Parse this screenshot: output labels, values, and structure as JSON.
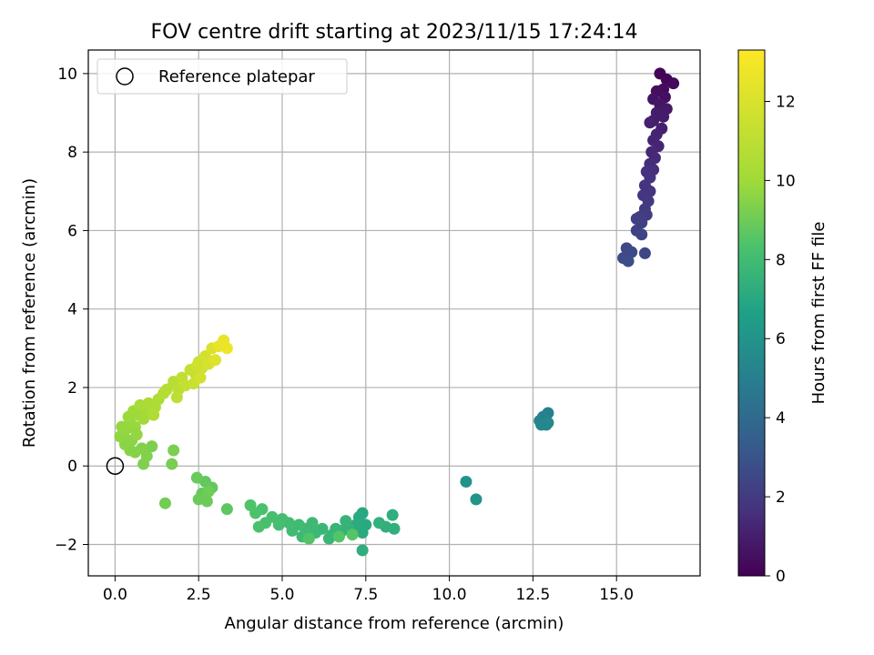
{
  "chart_data": {
    "type": "scatter",
    "title": "FOV centre drift starting at 2023/11/15 17:24:14",
    "xlabel": "Angular distance from reference (arcmin)",
    "ylabel": "Rotation from reference (arcmin)",
    "xlim": [
      -0.8,
      17.5
    ],
    "ylim": [
      -2.8,
      10.6
    ],
    "xticks": [
      0.0,
      2.5,
      5.0,
      7.5,
      10.0,
      12.5,
      15.0
    ],
    "xtick_labels": [
      "0.0",
      "2.5",
      "5.0",
      "7.5",
      "10.0",
      "12.5",
      "15.0"
    ],
    "yticks": [
      -2,
      0,
      2,
      4,
      6,
      8,
      10
    ],
    "ytick_labels": [
      "−2",
      "0",
      "2",
      "4",
      "6",
      "8",
      "10"
    ],
    "grid": true,
    "legend": {
      "position": "top-left",
      "entries": [
        "Reference platepar"
      ]
    },
    "reference_point": {
      "x": 0.0,
      "y": 0.0,
      "marker": "open-circle"
    },
    "colorbar": {
      "label": "Hours from first FF file",
      "range": [
        0,
        13.3
      ],
      "ticks": [
        0,
        2,
        4,
        6,
        8,
        10,
        12
      ],
      "tick_labels": [
        "0",
        "2",
        "4",
        "6",
        "8",
        "10",
        "12"
      ],
      "colormap": "viridis"
    },
    "points": [
      {
        "x": 16.3,
        "y": 10.0,
        "c": 0.1
      },
      {
        "x": 16.5,
        "y": 9.85,
        "c": 0.2
      },
      {
        "x": 16.7,
        "y": 9.75,
        "c": 0.3
      },
      {
        "x": 16.4,
        "y": 9.6,
        "c": 0.4
      },
      {
        "x": 16.2,
        "y": 9.55,
        "c": 0.5
      },
      {
        "x": 16.45,
        "y": 9.4,
        "c": 0.6
      },
      {
        "x": 16.1,
        "y": 9.35,
        "c": 0.7
      },
      {
        "x": 16.3,
        "y": 9.2,
        "c": 0.8
      },
      {
        "x": 16.5,
        "y": 9.1,
        "c": 0.9
      },
      {
        "x": 16.2,
        "y": 9.0,
        "c": 1.0
      },
      {
        "x": 16.4,
        "y": 8.9,
        "c": 1.05
      },
      {
        "x": 16.1,
        "y": 8.8,
        "c": 1.1
      },
      {
        "x": 16.35,
        "y": 8.6,
        "c": 1.2
      },
      {
        "x": 16.0,
        "y": 8.75,
        "c": 1.25
      },
      {
        "x": 16.2,
        "y": 8.45,
        "c": 1.3
      },
      {
        "x": 16.1,
        "y": 8.3,
        "c": 1.4
      },
      {
        "x": 16.25,
        "y": 8.15,
        "c": 1.45
      },
      {
        "x": 16.05,
        "y": 8.0,
        "c": 1.5
      },
      {
        "x": 16.15,
        "y": 7.85,
        "c": 1.6
      },
      {
        "x": 16.0,
        "y": 7.7,
        "c": 1.7
      },
      {
        "x": 16.1,
        "y": 7.55,
        "c": 1.8
      },
      {
        "x": 15.9,
        "y": 7.5,
        "c": 1.85
      },
      {
        "x": 16.0,
        "y": 7.35,
        "c": 1.9
      },
      {
        "x": 15.85,
        "y": 7.15,
        "c": 2.0
      },
      {
        "x": 16.0,
        "y": 7.0,
        "c": 2.05
      },
      {
        "x": 15.8,
        "y": 6.9,
        "c": 2.1
      },
      {
        "x": 15.95,
        "y": 6.75,
        "c": 2.2
      },
      {
        "x": 15.85,
        "y": 6.55,
        "c": 2.3
      },
      {
        "x": 15.9,
        "y": 6.4,
        "c": 2.4
      },
      {
        "x": 15.7,
        "y": 6.35,
        "c": 2.45
      },
      {
        "x": 15.6,
        "y": 6.3,
        "c": 2.5
      },
      {
        "x": 15.75,
        "y": 6.2,
        "c": 2.55
      },
      {
        "x": 15.6,
        "y": 6.0,
        "c": 2.6
      },
      {
        "x": 15.75,
        "y": 5.9,
        "c": 2.7
      },
      {
        "x": 15.85,
        "y": 5.42,
        "c": 2.8
      },
      {
        "x": 15.3,
        "y": 5.55,
        "c": 2.9
      },
      {
        "x": 15.45,
        "y": 5.45,
        "c": 3.0
      },
      {
        "x": 15.2,
        "y": 5.3,
        "c": 3.05
      },
      {
        "x": 15.35,
        "y": 5.22,
        "c": 3.1
      },
      {
        "x": 12.95,
        "y": 1.35,
        "c": 5.7
      },
      {
        "x": 12.8,
        "y": 1.25,
        "c": 5.8
      },
      {
        "x": 12.7,
        "y": 1.15,
        "c": 5.9
      },
      {
        "x": 12.9,
        "y": 1.05,
        "c": 6.0
      },
      {
        "x": 12.75,
        "y": 1.05,
        "c": 6.1
      },
      {
        "x": 12.95,
        "y": 1.1,
        "c": 6.2
      },
      {
        "x": 10.5,
        "y": -0.4,
        "c": 6.8
      },
      {
        "x": 10.8,
        "y": -0.85,
        "c": 6.9
      },
      {
        "x": 7.4,
        "y": -1.2,
        "c": 8.0
      },
      {
        "x": 7.3,
        "y": -1.3,
        "c": 8.05
      },
      {
        "x": 7.5,
        "y": -1.5,
        "c": 8.1
      },
      {
        "x": 7.4,
        "y": -1.7,
        "c": 8.15
      },
      {
        "x": 7.2,
        "y": -1.5,
        "c": 8.2
      },
      {
        "x": 7.4,
        "y": -2.15,
        "c": 8.3
      },
      {
        "x": 8.3,
        "y": -1.25,
        "c": 8.35
      },
      {
        "x": 8.35,
        "y": -1.6,
        "c": 8.4
      },
      {
        "x": 8.1,
        "y": -1.55,
        "c": 8.45
      },
      {
        "x": 7.9,
        "y": -1.45,
        "c": 8.5
      },
      {
        "x": 7.0,
        "y": -1.6,
        "c": 8.55
      },
      {
        "x": 6.8,
        "y": -1.65,
        "c": 8.6
      },
      {
        "x": 6.9,
        "y": -1.4,
        "c": 8.65
      },
      {
        "x": 6.6,
        "y": -1.6,
        "c": 8.7
      },
      {
        "x": 6.5,
        "y": -1.75,
        "c": 8.75
      },
      {
        "x": 6.4,
        "y": -1.85,
        "c": 8.8
      },
      {
        "x": 6.2,
        "y": -1.6,
        "c": 8.85
      },
      {
        "x": 6.0,
        "y": -1.7,
        "c": 8.9
      },
      {
        "x": 5.9,
        "y": -1.45,
        "c": 8.95
      },
      {
        "x": 5.7,
        "y": -1.6,
        "c": 9.0
      },
      {
        "x": 5.6,
        "y": -1.8,
        "c": 9.05
      },
      {
        "x": 5.5,
        "y": -1.5,
        "c": 9.1
      },
      {
        "x": 5.3,
        "y": -1.65,
        "c": 9.15
      },
      {
        "x": 5.2,
        "y": -1.45,
        "c": 9.2
      },
      {
        "x": 5.0,
        "y": -1.35,
        "c": 9.25
      },
      {
        "x": 4.9,
        "y": -1.5,
        "c": 9.3
      },
      {
        "x": 4.7,
        "y": -1.3,
        "c": 9.35
      },
      {
        "x": 4.5,
        "y": -1.45,
        "c": 9.4
      },
      {
        "x": 4.4,
        "y": -1.1,
        "c": 9.45
      },
      {
        "x": 4.3,
        "y": -1.55,
        "c": 9.5
      },
      {
        "x": 4.2,
        "y": -1.2,
        "c": 9.55
      },
      {
        "x": 4.05,
        "y": -1.0,
        "c": 9.6
      },
      {
        "x": 5.8,
        "y": -1.85,
        "c": 9.65
      },
      {
        "x": 6.7,
        "y": -1.8,
        "c": 9.7
      },
      {
        "x": 7.1,
        "y": -1.75,
        "c": 9.75
      },
      {
        "x": 3.35,
        "y": -1.1,
        "c": 9.9
      },
      {
        "x": 2.9,
        "y": -0.55,
        "c": 10.0
      },
      {
        "x": 2.7,
        "y": -0.4,
        "c": 10.05
      },
      {
        "x": 2.6,
        "y": -0.7,
        "c": 10.1
      },
      {
        "x": 2.45,
        "y": -0.3,
        "c": 10.15
      },
      {
        "x": 2.5,
        "y": -0.85,
        "c": 10.2
      },
      {
        "x": 2.75,
        "y": -0.9,
        "c": 10.25
      },
      {
        "x": 2.8,
        "y": -0.65,
        "c": 10.3
      },
      {
        "x": 1.5,
        "y": -0.95,
        "c": 10.4
      },
      {
        "x": 1.7,
        "y": 0.05,
        "c": 10.5
      },
      {
        "x": 1.75,
        "y": 0.4,
        "c": 10.55
      },
      {
        "x": 1.1,
        "y": 0.5,
        "c": 10.6
      },
      {
        "x": 0.85,
        "y": 0.05,
        "c": 10.65
      },
      {
        "x": 0.95,
        "y": 0.25,
        "c": 10.7
      },
      {
        "x": 0.8,
        "y": 0.45,
        "c": 10.75
      },
      {
        "x": 0.6,
        "y": 0.35,
        "c": 10.8
      },
      {
        "x": 0.45,
        "y": 0.4,
        "c": 10.85
      },
      {
        "x": 0.3,
        "y": 0.55,
        "c": 10.9
      },
      {
        "x": 0.5,
        "y": 0.65,
        "c": 10.95
      },
      {
        "x": 0.25,
        "y": 0.8,
        "c": 11.0
      },
      {
        "x": 0.15,
        "y": 0.75,
        "c": 11.05
      },
      {
        "x": 0.35,
        "y": 0.95,
        "c": 11.1
      },
      {
        "x": 0.2,
        "y": 1.0,
        "c": 11.15
      },
      {
        "x": 0.45,
        "y": 1.1,
        "c": 11.2
      },
      {
        "x": 0.6,
        "y": 1.0,
        "c": 11.25
      },
      {
        "x": 0.4,
        "y": 1.25,
        "c": 11.3
      },
      {
        "x": 0.7,
        "y": 1.3,
        "c": 11.35
      },
      {
        "x": 0.55,
        "y": 1.4,
        "c": 11.4
      },
      {
        "x": 0.85,
        "y": 1.2,
        "c": 11.45
      },
      {
        "x": 0.95,
        "y": 1.45,
        "c": 11.5
      },
      {
        "x": 0.75,
        "y": 1.55,
        "c": 11.55
      },
      {
        "x": 1.0,
        "y": 1.6,
        "c": 11.6
      },
      {
        "x": 1.2,
        "y": 1.5,
        "c": 11.65
      },
      {
        "x": 1.3,
        "y": 1.7,
        "c": 11.7
      },
      {
        "x": 1.15,
        "y": 1.3,
        "c": 11.75
      },
      {
        "x": 1.45,
        "y": 1.85,
        "c": 11.8
      },
      {
        "x": 1.55,
        "y": 1.95,
        "c": 11.85
      },
      {
        "x": 1.75,
        "y": 2.15,
        "c": 11.9
      },
      {
        "x": 1.9,
        "y": 1.95,
        "c": 11.95
      },
      {
        "x": 1.85,
        "y": 1.75,
        "c": 12.0
      },
      {
        "x": 2.0,
        "y": 2.25,
        "c": 12.05
      },
      {
        "x": 2.1,
        "y": 2.05,
        "c": 12.1
      },
      {
        "x": 2.25,
        "y": 2.45,
        "c": 12.15
      },
      {
        "x": 2.4,
        "y": 2.35,
        "c": 12.2
      },
      {
        "x": 2.35,
        "y": 2.1,
        "c": 12.25
      },
      {
        "x": 2.5,
        "y": 2.65,
        "c": 12.3
      },
      {
        "x": 2.6,
        "y": 2.5,
        "c": 12.35
      },
      {
        "x": 2.55,
        "y": 2.25,
        "c": 12.4
      },
      {
        "x": 2.7,
        "y": 2.8,
        "c": 12.45
      },
      {
        "x": 2.8,
        "y": 2.6,
        "c": 12.5
      },
      {
        "x": 2.9,
        "y": 3.0,
        "c": 12.6
      },
      {
        "x": 3.0,
        "y": 2.7,
        "c": 12.7
      },
      {
        "x": 3.1,
        "y": 3.05,
        "c": 12.8
      },
      {
        "x": 3.25,
        "y": 3.2,
        "c": 12.9
      },
      {
        "x": 3.35,
        "y": 3.0,
        "c": 13.0
      },
      {
        "x": 2.45,
        "y": 2.55,
        "c": 12.35
      },
      {
        "x": 0.65,
        "y": 0.8,
        "c": 11.1
      }
    ]
  }
}
